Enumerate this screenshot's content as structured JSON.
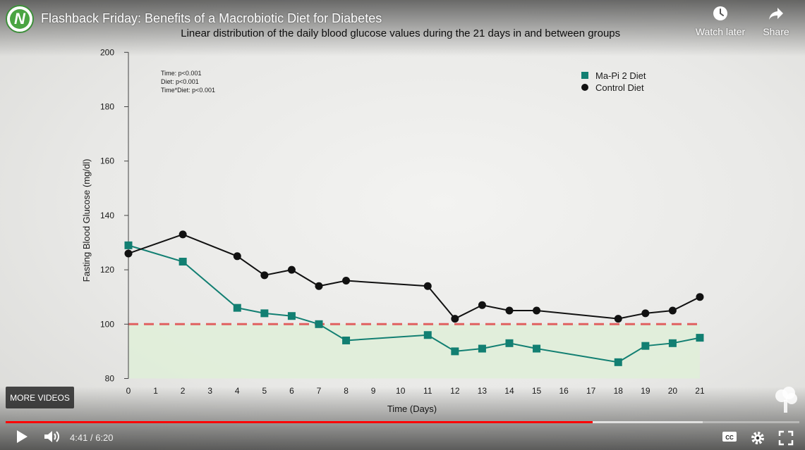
{
  "video": {
    "title": "Flashback Friday: Benefits of a Macrobiotic Diet for Diabetes",
    "time_current": "4:41",
    "time_separator": "/",
    "time_total": "6:20",
    "progress_played": 0.7395,
    "progress_loaded": 0.878
  },
  "top_actions": {
    "watch_later": "Watch later",
    "share": "Share"
  },
  "more_videos_label": "MORE VIDEOS",
  "icons": {
    "play": "play-icon",
    "volume": "volume-icon",
    "cc": "cc-icon",
    "settings": "gear-icon",
    "fullscreen": "fullscreen-icon",
    "clock": "clock-icon",
    "share": "share-icon"
  },
  "colors": {
    "progress_red": "#ff0000",
    "series_mapi": "#127f72",
    "series_control": "#111111",
    "threshold": "#e06060",
    "target_zone": "#dfeed8"
  },
  "chart_data": {
    "type": "line",
    "title": "Linear distribution of the daily blood glucose values during the 21 days in and between groups",
    "xlabel": "Time (Days)",
    "ylabel": "Fasting Blood Glucose (mg/dl)",
    "ylim": [
      80,
      200
    ],
    "yticks": [
      80,
      100,
      120,
      140,
      160,
      180,
      200
    ],
    "xticks": [
      0,
      1,
      2,
      3,
      4,
      5,
      6,
      7,
      8,
      9,
      10,
      11,
      12,
      13,
      14,
      15,
      16,
      17,
      18,
      19,
      20,
      21
    ],
    "legend_position": "top-right",
    "stats": [
      "Time: p<0.001",
      "Diet: p<0.001",
      "Time*Diet: p<0.001"
    ],
    "threshold": 100,
    "series": [
      {
        "name": "Ma-Pi 2 Diet",
        "marker": "square",
        "x": [
          0,
          2,
          4,
          5,
          6,
          7,
          8,
          11,
          12,
          13,
          14,
          15,
          18,
          19,
          20,
          21
        ],
        "values": [
          129,
          123,
          106,
          104,
          103,
          100,
          94,
          96,
          90,
          91,
          93,
          91,
          86,
          92,
          93,
          95
        ]
      },
      {
        "name": "Control Diet",
        "marker": "circle",
        "x": [
          0,
          2,
          4,
          5,
          6,
          7,
          8,
          11,
          12,
          13,
          14,
          15,
          18,
          19,
          20,
          21
        ],
        "values": [
          126,
          133,
          125,
          118,
          120,
          114,
          116,
          114,
          102,
          107,
          105,
          105,
          102,
          104,
          105,
          110
        ]
      }
    ]
  }
}
